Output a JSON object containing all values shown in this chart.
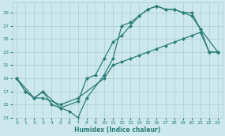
{
  "xlabel": "Humidex (Indice chaleur)",
  "bg_color": "#cce8ec",
  "grid_color": "#aacdd4",
  "line_color": "#2d7d78",
  "xlim": [
    -0.5,
    23.5
  ],
  "ylim": [
    13,
    30.5
  ],
  "yticks": [
    13,
    15,
    17,
    19,
    21,
    23,
    25,
    27,
    29
  ],
  "xticks": [
    0,
    1,
    2,
    3,
    4,
    5,
    6,
    7,
    8,
    9,
    10,
    11,
    12,
    13,
    14,
    15,
    16,
    17,
    18,
    19,
    20,
    21,
    22,
    23
  ],
  "line1_x": [
    0,
    1,
    2,
    3,
    4,
    5,
    6,
    7,
    8,
    10,
    11,
    12,
    13,
    14,
    15,
    16,
    17,
    18,
    19,
    20,
    21,
    22,
    23
  ],
  "line1_y": [
    19,
    17,
    16,
    17,
    15,
    14.5,
    14,
    13,
    16,
    19.5,
    22,
    27,
    27.5,
    28.5,
    29.5,
    30,
    29.5,
    29.5,
    29,
    29,
    26.5,
    23,
    23
  ],
  "line2_x": [
    0,
    1,
    2,
    3,
    5,
    7,
    8,
    9,
    10,
    11,
    12,
    13,
    14,
    15,
    16,
    17,
    18,
    19,
    20,
    21,
    23
  ],
  "line2_y": [
    19,
    17,
    16,
    17,
    14.5,
    15.5,
    19,
    19.5,
    22,
    24.5,
    25.5,
    27,
    28.5,
    29.5,
    30,
    29.5,
    29.5,
    29,
    28.5,
    26.5,
    23
  ],
  "line3_x": [
    0,
    2,
    3,
    5,
    7,
    10,
    11,
    12,
    13,
    14,
    15,
    16,
    17,
    18,
    19,
    20,
    21,
    22,
    23
  ],
  "line3_y": [
    19,
    16,
    16,
    15,
    16,
    19,
    21,
    21.5,
    22,
    22.5,
    23,
    23.5,
    24,
    24.5,
    25,
    25.5,
    26,
    23,
    23
  ]
}
